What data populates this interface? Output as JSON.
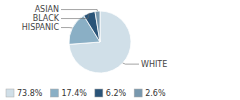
{
  "chart_data": {
    "type": "pie",
    "categories": [
      "WHITE",
      "HISPANIC",
      "BLACK",
      "ASIAN"
    ],
    "values": [
      73.8,
      17.4,
      6.2,
      2.6
    ],
    "value_labels": [
      "73.8%",
      "17.4%",
      "6.2%",
      "2.6%"
    ],
    "colors": [
      "#d0dfe8",
      "#8aafc5",
      "#2a5478",
      "#7898ae"
    ],
    "legend": "bottom-left"
  }
}
